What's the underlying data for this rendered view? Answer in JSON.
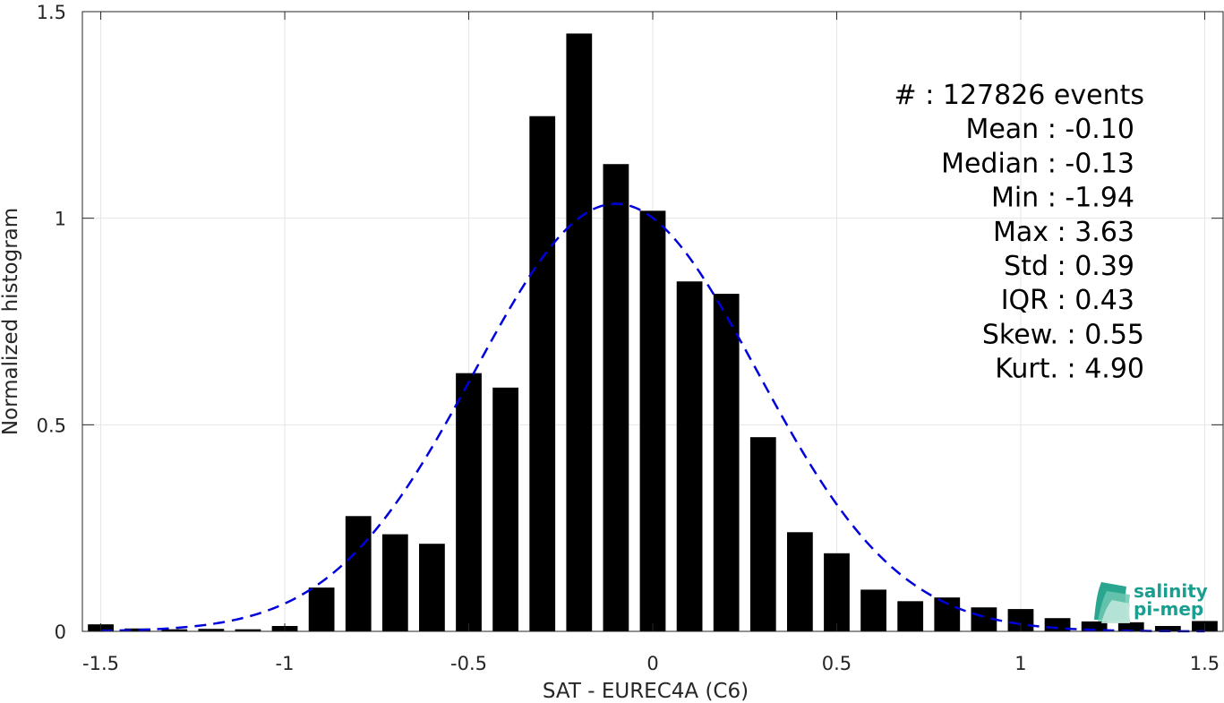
{
  "chart_data": {
    "type": "bar",
    "title": "",
    "xlabel": "SAT - EUREC4A (C6)",
    "ylabel": "Normalized histogram",
    "xlim": [
      -1.55,
      1.55
    ],
    "ylim": [
      0,
      1.5
    ],
    "xticks": [
      "-1.5",
      "-1",
      "-0.5",
      "0",
      "0.5",
      "1",
      "1.5"
    ],
    "yticks": [
      "0",
      "0.5",
      "1",
      "1.5"
    ],
    "grid": true,
    "bar_color": "#000000",
    "bar_width": 0.07,
    "x": [
      -1.5,
      -1.4,
      -1.3,
      -1.2,
      -1.1,
      -1.0,
      -0.9,
      -0.8,
      -0.7,
      -0.6,
      -0.5,
      -0.4,
      -0.3,
      -0.2,
      -0.1,
      0.0,
      0.1,
      0.2,
      0.3,
      0.4,
      0.5,
      0.6,
      0.7,
      0.8,
      0.9,
      1.0,
      1.1,
      1.2,
      1.3,
      1.4,
      1.5
    ],
    "values": [
      0.017,
      0.007,
      0.005,
      0.006,
      0.005,
      0.013,
      0.106,
      0.279,
      0.235,
      0.212,
      0.625,
      0.59,
      1.247,
      1.447,
      1.131,
      1.018,
      0.847,
      0.817,
      0.47,
      0.24,
      0.189,
      0.101,
      0.073,
      0.082,
      0.058,
      0.054,
      0.032,
      0.024,
      0.022,
      0.013,
      0.025
    ],
    "fit_curve": {
      "style": "dashed",
      "color": "#0000dd",
      "mean": -0.1,
      "std": 0.385,
      "peak": 1.035,
      "x_range": [
        -1.5,
        1.5
      ]
    },
    "stats": [
      "#  : 127826 events",
      "Mean : -0.10",
      "Median : -0.13",
      "Min : -1.94",
      "Max : 3.63",
      "Std : 0.39",
      "IQR : 0.43",
      "Skew. : 0.55",
      "Kurt. : 4.90"
    ],
    "logo": {
      "line1": "salinity",
      "line2": "pi-mep",
      "color": "#1a9e8f"
    }
  }
}
